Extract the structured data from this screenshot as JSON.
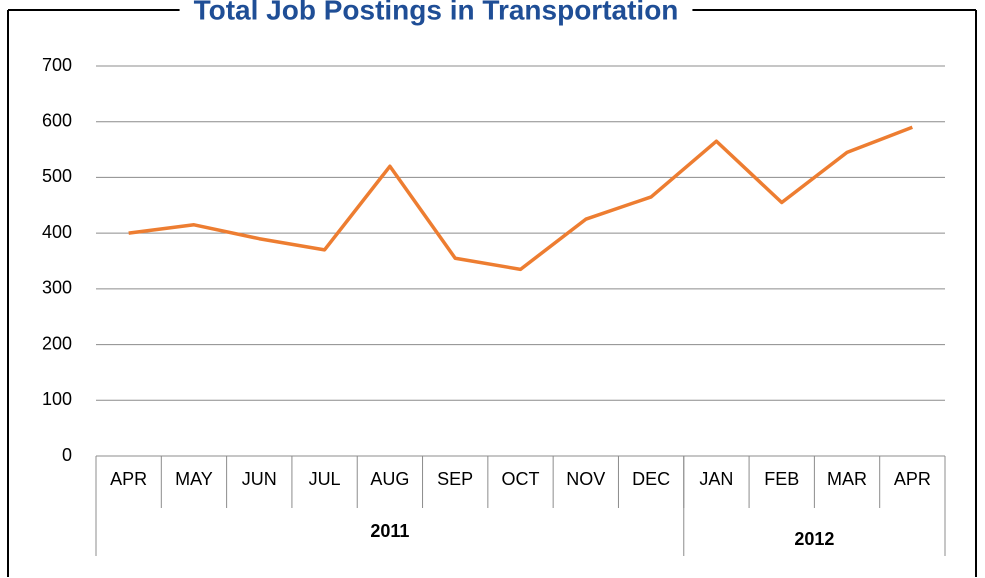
{
  "chart_data": {
    "type": "line",
    "title": "Total Job Postings in Transportation",
    "categories": [
      "APR",
      "MAY",
      "JUN",
      "JUL",
      "AUG",
      "SEP",
      "OCT",
      "NOV",
      "DEC",
      "JAN",
      "FEB",
      "MAR",
      "APR"
    ],
    "year_groups": [
      {
        "label": "2011",
        "count": 9
      },
      {
        "label": "2012",
        "count": 4
      }
    ],
    "series": [
      {
        "name": "Total Job Postings",
        "color": "#ed7d31",
        "values": [
          400,
          415,
          390,
          370,
          520,
          355,
          335,
          425,
          465,
          565,
          455,
          545,
          590
        ]
      }
    ],
    "ylim": [
      0,
      700
    ],
    "yticks": [
      0,
      100,
      200,
      300,
      400,
      500,
      600,
      700
    ],
    "grid": true
  }
}
